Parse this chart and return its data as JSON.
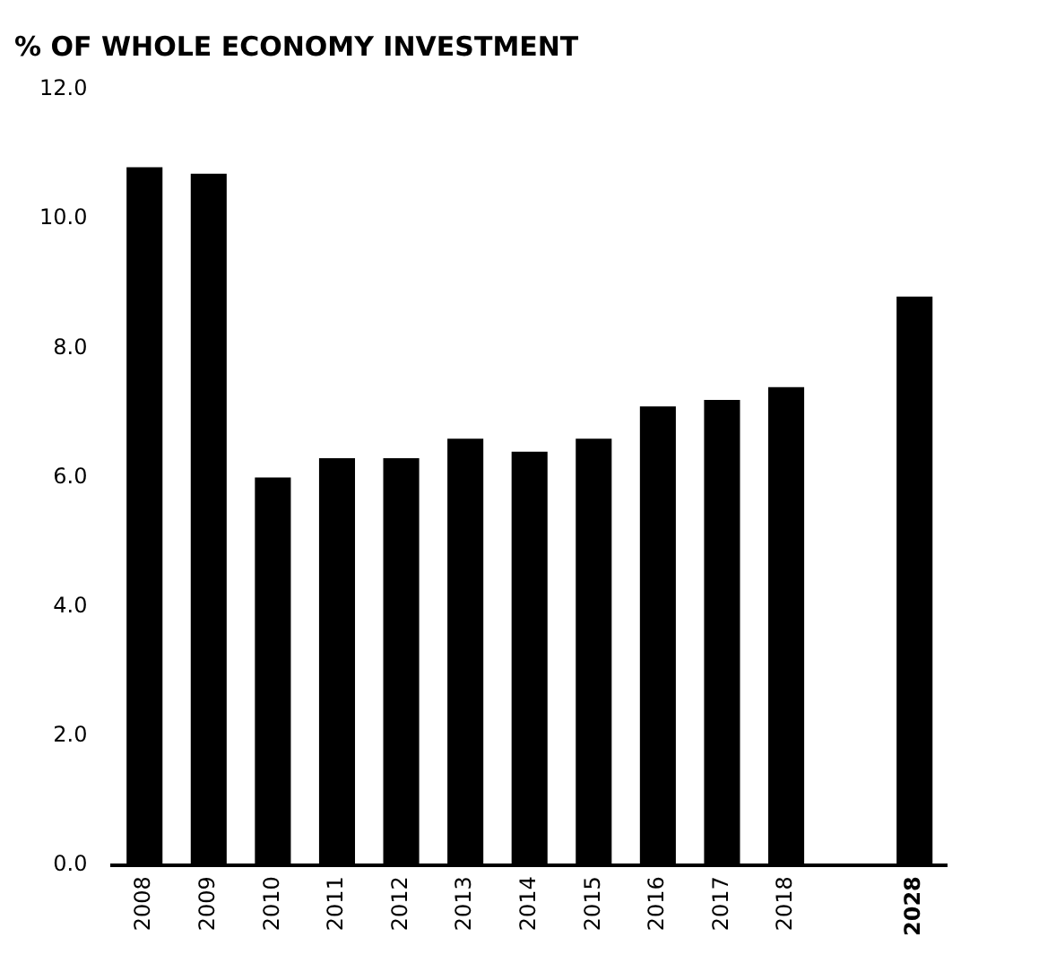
{
  "chart_data": {
    "type": "bar",
    "title": "% OF WHOLE ECONOMY INVESTMENT",
    "categories": [
      "2008",
      "2009",
      "2010",
      "2011",
      "2012",
      "2013",
      "2014",
      "2015",
      "2016",
      "2017",
      "2018",
      null,
      "2028"
    ],
    "values": [
      10.8,
      10.7,
      6.0,
      6.3,
      6.3,
      6.6,
      6.4,
      6.6,
      7.1,
      7.2,
      7.4,
      null,
      8.8
    ],
    "color": "#000000",
    "ylim": [
      0,
      12
    ],
    "yticks": [
      {
        "value": 0,
        "label": "0.0"
      },
      {
        "value": 2,
        "label": "2.0"
      },
      {
        "value": 4,
        "label": "4.0"
      },
      {
        "value": 6,
        "label": "6.0"
      },
      {
        "value": 8,
        "label": "8.0"
      },
      {
        "value": 10,
        "label": "10.0"
      },
      {
        "value": 12,
        "label": "12.0"
      }
    ],
    "grid": false,
    "legend": false
  }
}
